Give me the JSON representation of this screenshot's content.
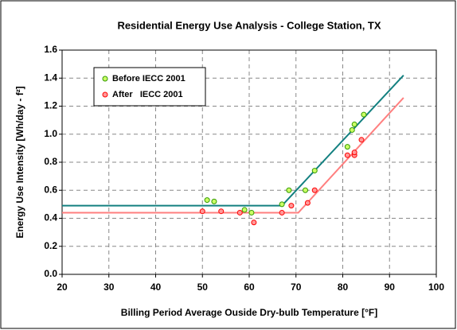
{
  "chart_data": {
    "type": "scatter",
    "title": "Residential Energy Use Analysis - College Station, TX",
    "xlabel": "Billing Period Average Ouside Dry-bulb Temperature [°F]",
    "ylabel": "Energy Use Intensity [Wh/day - f²]",
    "xlim": [
      20,
      100
    ],
    "xticks": [
      20,
      30,
      40,
      50,
      60,
      70,
      80,
      90,
      100
    ],
    "ylim": [
      0,
      1.6
    ],
    "yticks": [
      {
        "value": 0,
        "label": "0.0"
      },
      0.2,
      0.4,
      0.6,
      0.8,
      {
        "value": 1,
        "label": "1.0"
      },
      1.2,
      1.4,
      1.6
    ],
    "grid": true,
    "legend": "upper left",
    "series": [
      {
        "name": "Before IECC 2001",
        "color": "#ccff66",
        "edgecolor": "#339900",
        "x": [
          51,
          52.5,
          59,
          60.5,
          67,
          68.5,
          72,
          74,
          81,
          82,
          82.5,
          84.5
        ],
        "values": [
          0.53,
          0.52,
          0.46,
          0.44,
          0.5,
          0.6,
          0.6,
          0.74,
          0.91,
          1.03,
          1.07,
          1.14
        ]
      },
      {
        "name": "After   IECC 2001",
        "color": "#ff9999",
        "edgecolor": "#ff0000",
        "x": [
          50,
          54,
          58,
          61,
          67,
          69,
          72.5,
          74,
          81,
          82.5,
          82.5,
          84
        ],
        "values": [
          0.45,
          0.45,
          0.44,
          0.37,
          0.44,
          0.49,
          0.51,
          0.6,
          0.85,
          0.85,
          0.87,
          0.96
        ]
      }
    ],
    "lines": [
      {
        "color": "#138080",
        "x": [
          20,
          67,
          93
        ],
        "values": [
          0.49,
          0.49,
          1.42
        ]
      },
      {
        "color": "#ff7f7f",
        "x": [
          20,
          70.5,
          93
        ],
        "values": [
          0.44,
          0.44,
          1.26
        ]
      }
    ]
  }
}
